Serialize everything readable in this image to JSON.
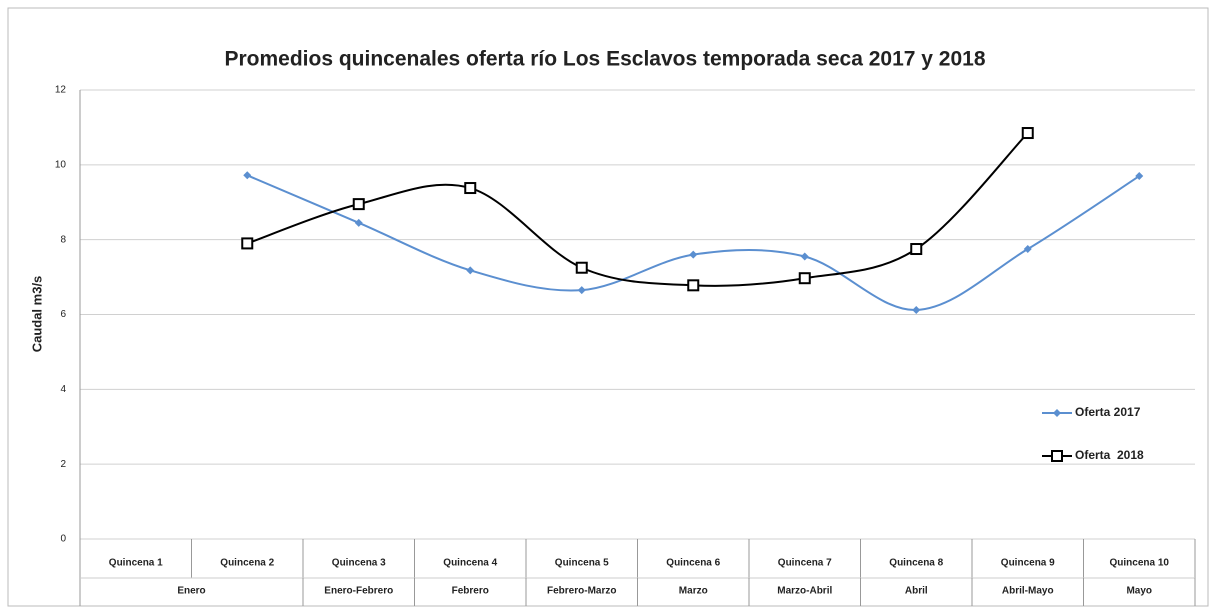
{
  "chart_data": {
    "type": "line",
    "title": "Promedios quincenales oferta río Los Esclavos temporada seca 2017 y 2018",
    "y_label": "Caudal m3/s",
    "categories": [
      "Quincena 1",
      "Quincena 2",
      "Quincena 3",
      "Quincena 4",
      "Quincena 5",
      "Quincena 6",
      "Quincena 7",
      "Quincena 8",
      "Quincena 9",
      "Quincena 10"
    ],
    "group_categories": [
      "Enero",
      null,
      "Enero-Febrero",
      "Febrero",
      "Febrero-Marzo",
      "Marzo",
      "Marzo-Abril",
      "Abril",
      "Abril-Mayo",
      "Mayo"
    ],
    "series": [
      {
        "name": "Oferta 2017",
        "color": "#5b8fd0",
        "marker": "diamond",
        "values": [
          null,
          9.72,
          8.45,
          7.18,
          6.65,
          7.6,
          7.55,
          6.12,
          7.75,
          9.7
        ]
      },
      {
        "name": "Oferta  2018",
        "color": "#000000",
        "marker": "square",
        "values": [
          null,
          7.9,
          8.95,
          9.38,
          7.25,
          6.78,
          6.97,
          7.75,
          10.85,
          null
        ]
      }
    ],
    "smooth": true,
    "ylim": [
      0,
      12
    ],
    "yticks": [
      0,
      2,
      4,
      6,
      8,
      10,
      12
    ],
    "grid": true,
    "legend": "right"
  }
}
